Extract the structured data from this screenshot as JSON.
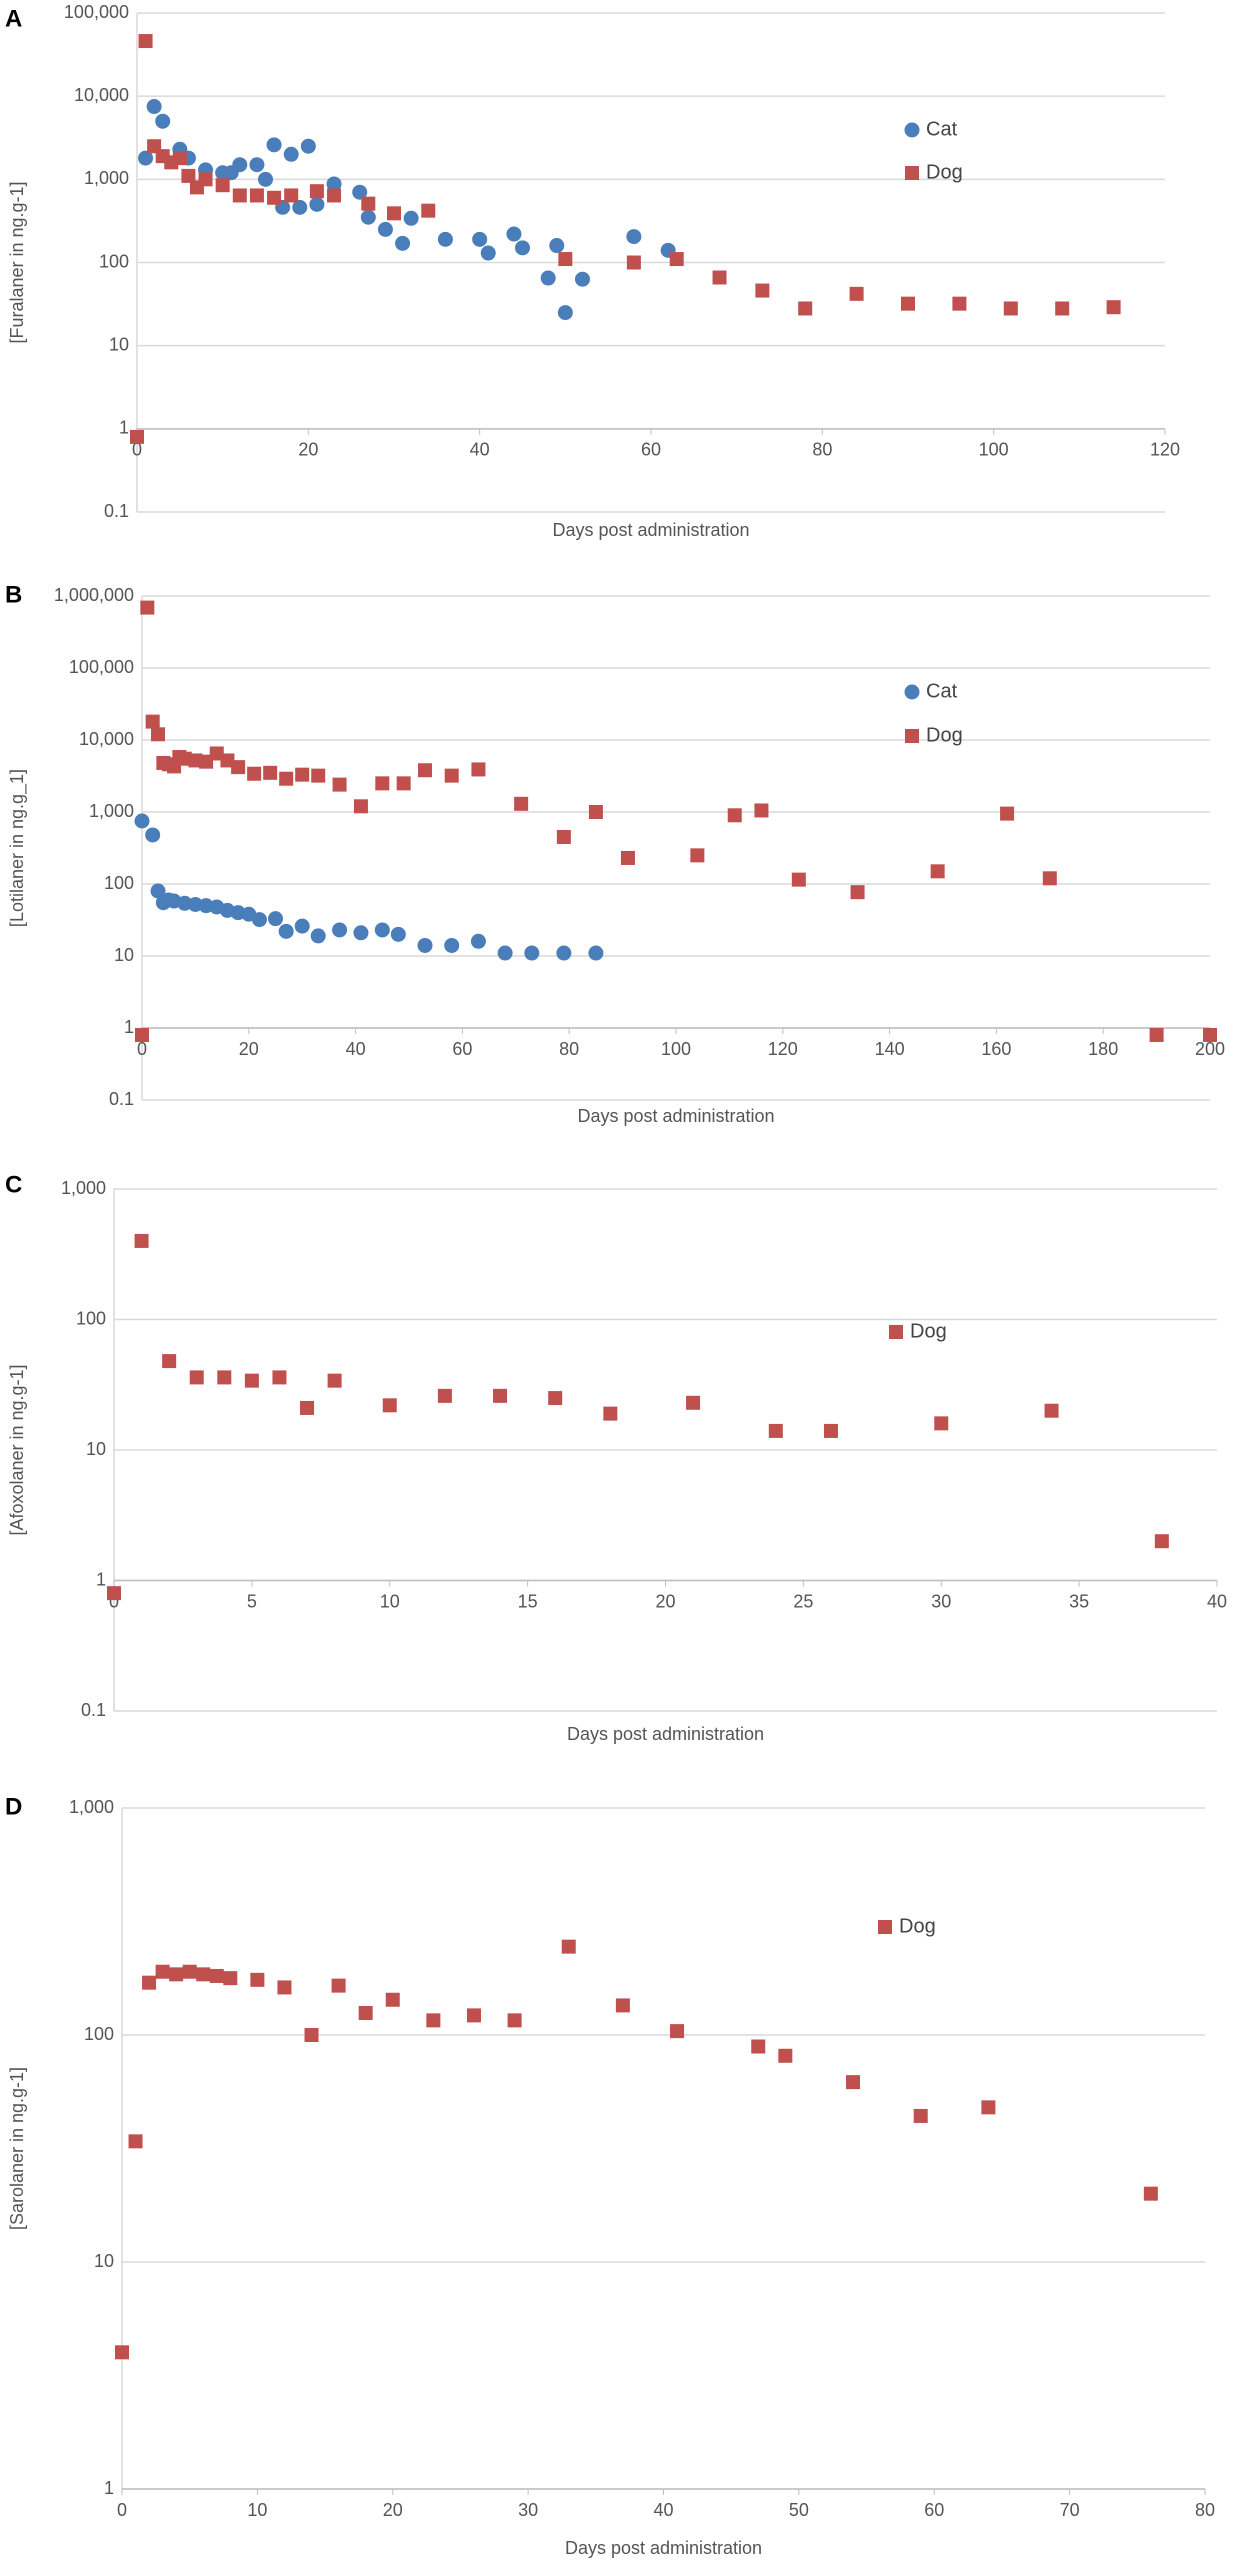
{
  "chart_data": [
    {
      "type": "scatter",
      "panel_label": "A",
      "x_label": "Days post administration",
      "y_label": "[Furalaner in ng.g-1]",
      "xlim": [
        0,
        120
      ],
      "xticks": [
        0,
        20,
        40,
        60,
        80,
        100,
        120
      ],
      "ylim": [
        0.1,
        100000
      ],
      "yticks": [
        0.1,
        1,
        10,
        100,
        {
          "value": 1000,
          "label": "1,000"
        },
        {
          "value": 10000,
          "label": "10,000"
        },
        {
          "value": 100000,
          "label": "100,000"
        }
      ],
      "yscale": "log",
      "grid": true,
      "series": [
        {
          "name": "Cat",
          "color": "#4a7ebb",
          "marker": "circle",
          "x": [
            1,
            2,
            3,
            5,
            6,
            8,
            10,
            11,
            12,
            14,
            15,
            16,
            17,
            18,
            19,
            20,
            21,
            23,
            26,
            27,
            29,
            31,
            32,
            36,
            40,
            41,
            44,
            45,
            48,
            49,
            50,
            52,
            58,
            62
          ],
          "values": [
            1800,
            7500,
            5000,
            2300,
            1800,
            1300,
            1200,
            1200,
            1500,
            1500,
            1000,
            2600,
            460,
            2000,
            460,
            2500,
            500,
            880,
            700,
            350,
            250,
            170,
            340,
            190,
            190,
            130,
            220,
            150,
            65,
            160,
            25,
            63,
            205,
            140
          ]
        },
        {
          "name": "Dog",
          "color": "#c0504d",
          "marker": "square",
          "x": [
            0,
            1,
            2,
            3,
            4,
            5,
            6,
            7,
            8,
            10,
            12,
            14,
            16,
            18,
            21,
            23,
            27,
            30,
            34,
            50,
            58,
            63,
            68,
            73,
            78,
            84,
            90,
            96,
            102,
            108,
            114
          ],
          "values": [
            0.8,
            46000,
            2500,
            1900,
            1600,
            1800,
            1100,
            800,
            1000,
            850,
            640,
            640,
            600,
            640,
            720,
            640,
            510,
            390,
            420,
            110,
            100,
            110,
            66,
            46,
            28,
            42,
            32,
            32,
            28,
            28,
            29
          ]
        }
      ]
    },
    {
      "type": "scatter",
      "panel_label": "B",
      "x_label": "Days post administration",
      "y_label": "[Lotilaner in ng.g_1]",
      "xlim": [
        0,
        200
      ],
      "xticks": [
        0,
        20,
        40,
        60,
        80,
        100,
        120,
        140,
        160,
        180,
        200
      ],
      "ylim": [
        0.1,
        1000000
      ],
      "yticks": [
        0.1,
        1,
        10,
        100,
        {
          "value": 1000,
          "label": "1,000"
        },
        {
          "value": 10000,
          "label": "10,000"
        },
        {
          "value": 100000,
          "label": "100,000"
        },
        {
          "value": 1000000,
          "label": "1,000,000"
        }
      ],
      "yscale": "log",
      "grid": true,
      "series": [
        {
          "name": "Cat",
          "color": "#4a7ebb",
          "marker": "circle",
          "x": [
            0,
            2,
            3,
            4,
            5,
            6,
            8,
            10,
            12,
            14,
            16,
            18,
            20,
            22,
            25,
            27,
            30,
            33,
            37,
            41,
            45,
            48,
            53,
            58,
            63,
            68,
            73,
            79,
            85
          ],
          "values": [
            750,
            480,
            80,
            55,
            60,
            58,
            54,
            52,
            50,
            48,
            43,
            40,
            38,
            32,
            33,
            22,
            26,
            19,
            23,
            21,
            23,
            20,
            14,
            14,
            16,
            11,
            11,
            11,
            11
          ]
        },
        {
          "name": "Dog",
          "color": "#c0504d",
          "marker": "square",
          "x": [
            0,
            1,
            2,
            3,
            4,
            5,
            6,
            7,
            8,
            10,
            12,
            14,
            16,
            18,
            21,
            24,
            27,
            30,
            33,
            37,
            41,
            45,
            49,
            53,
            58,
            63,
            71,
            79,
            85,
            91,
            104,
            111,
            116,
            123,
            134,
            149,
            162,
            170,
            190,
            200
          ],
          "values": [
            0.8,
            690000,
            18000,
            12000,
            4800,
            4600,
            4300,
            5800,
            5500,
            5200,
            5000,
            6500,
            5200,
            4200,
            3400,
            3500,
            2900,
            3300,
            3200,
            2400,
            1200,
            2500,
            2500,
            3800,
            3200,
            3900,
            1300,
            450,
            1000,
            230,
            250,
            900,
            1050,
            115,
            77,
            150,
            950,
            120,
            0.8,
            0.8
          ]
        }
      ]
    },
    {
      "type": "scatter",
      "panel_label": "C",
      "x_label": "Days post administration",
      "y_label": "[Afoxolaner in ng.g-1]",
      "xlim": [
        0,
        40
      ],
      "xticks": [
        0,
        5,
        10,
        15,
        20,
        25,
        30,
        35,
        40
      ],
      "ylim": [
        0.1,
        1000
      ],
      "yticks": [
        0.1,
        1,
        10,
        100,
        {
          "value": 1000,
          "label": "1,000"
        }
      ],
      "yscale": "log",
      "grid": true,
      "series": [
        {
          "name": "Dog",
          "color": "#c0504d",
          "marker": "square",
          "x": [
            0,
            1,
            2,
            3,
            4,
            5,
            6,
            7,
            8,
            10,
            12,
            14,
            16,
            18,
            21,
            24,
            26,
            30,
            34,
            38
          ],
          "values": [
            0.8,
            400,
            48,
            36,
            36,
            34,
            36,
            21,
            34,
            22,
            26,
            26,
            25,
            19,
            23,
            14,
            14,
            16,
            20,
            2
          ]
        }
      ]
    },
    {
      "type": "scatter",
      "panel_label": "D",
      "x_label": "Days post administration",
      "y_label": "[Sarolaner in ng.g-1]",
      "xlim": [
        0,
        80
      ],
      "xticks": [
        0,
        10,
        20,
        30,
        40,
        50,
        60,
        70,
        80
      ],
      "ylim": [
        1,
        1000
      ],
      "yticks": [
        1,
        10,
        100,
        {
          "value": 1000,
          "label": "1,000"
        }
      ],
      "yscale": "log",
      "grid": true,
      "series": [
        {
          "name": "Dog",
          "color": "#c0504d",
          "marker": "square",
          "x": [
            0,
            1,
            2,
            3,
            4,
            5,
            6,
            7,
            8,
            10,
            12,
            14,
            16,
            18,
            20,
            23,
            26,
            29,
            33,
            37,
            41,
            47,
            49,
            54,
            59,
            64,
            76
          ],
          "values": [
            4,
            34,
            170,
            190,
            185,
            190,
            185,
            182,
            178,
            175,
            162,
            100,
            165,
            125,
            143,
            116,
            122,
            116,
            245,
            135,
            104,
            89,
            81,
            62,
            44,
            48,
            20
          ]
        }
      ]
    }
  ]
}
